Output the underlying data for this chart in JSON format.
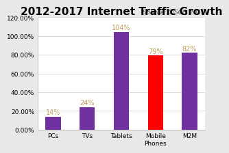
{
  "title": "2012-2017 Internet Traffic Growth",
  "source_text": "Source: CISCO 2013",
  "categories": [
    "PCs",
    "TVs",
    "Tablets",
    "Mobile\nPhones",
    "M2M"
  ],
  "values": [
    14,
    24,
    104,
    79,
    82
  ],
  "bar_colors": [
    "#7030a0",
    "#7030a0",
    "#7030a0",
    "#ff0000",
    "#7030a0"
  ],
  "label_color": "#c0a060",
  "ylim": [
    0,
    120
  ],
  "yticks": [
    0,
    20,
    40,
    60,
    80,
    100,
    120
  ],
  "ytick_labels": [
    "0.00%",
    "20.00%",
    "40.00%",
    "60.00%",
    "80.00%",
    "100.00%",
    "120.00%"
  ],
  "background_color": "#e8e8e8",
  "plot_background": "#ffffff",
  "title_fontsize": 11,
  "source_fontsize": 6.5,
  "label_fontsize": 7,
  "tick_fontsize": 6.5,
  "bar_width": 0.45
}
